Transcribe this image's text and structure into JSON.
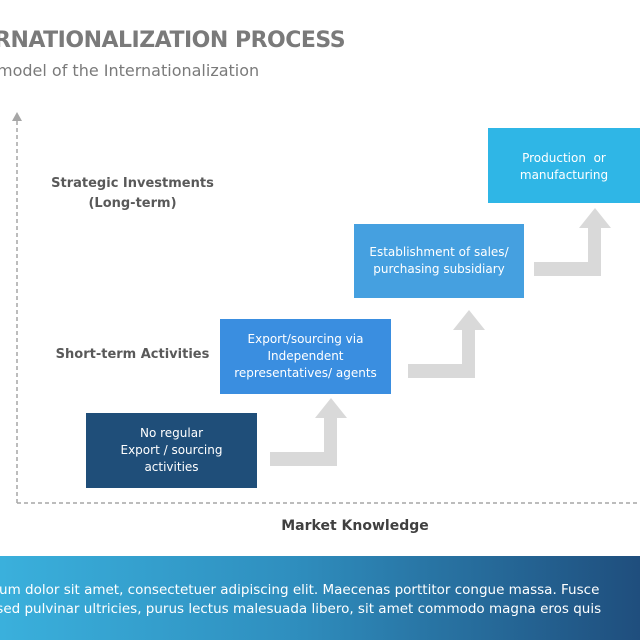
{
  "header": {
    "title": "RNATIONALIZATION PROCESS",
    "subtitle": " model of the Internationalization"
  },
  "axis": {
    "x_label": "Market Knowledge",
    "levels": [
      {
        "line1": "Strategic Investments",
        "line2": "(Long-term)"
      },
      {
        "line1": "Short-term Activities"
      }
    ]
  },
  "steps": [
    {
      "lines": [
        "No regular",
        "Export / sourcing",
        "activities"
      ],
      "color": "#1f4e79"
    },
    {
      "lines": [
        "Export/sourcing via",
        "Independent",
        "representatives/ agents"
      ],
      "color": "#3a8ee0"
    },
    {
      "lines": [
        "Establishment of sales/",
        "purchasing subsidiary"
      ],
      "color": "#45a0e0"
    },
    {
      "lines": [
        "Production  or",
        "manufacturing"
      ],
      "color": "#2fb6e6"
    }
  ],
  "colors": {
    "arrow": "#d9d9d9",
    "axis": "#a6a6a6"
  },
  "banner": {
    "line1": "sum dolor sit amet, consectetuer adipiscing elit. Maecenas porttitor congue massa. Fusce",
    "line2": " sed pulvinar ultricies, purus lectus malesuada libero, sit amet commodo magna eros quis"
  }
}
